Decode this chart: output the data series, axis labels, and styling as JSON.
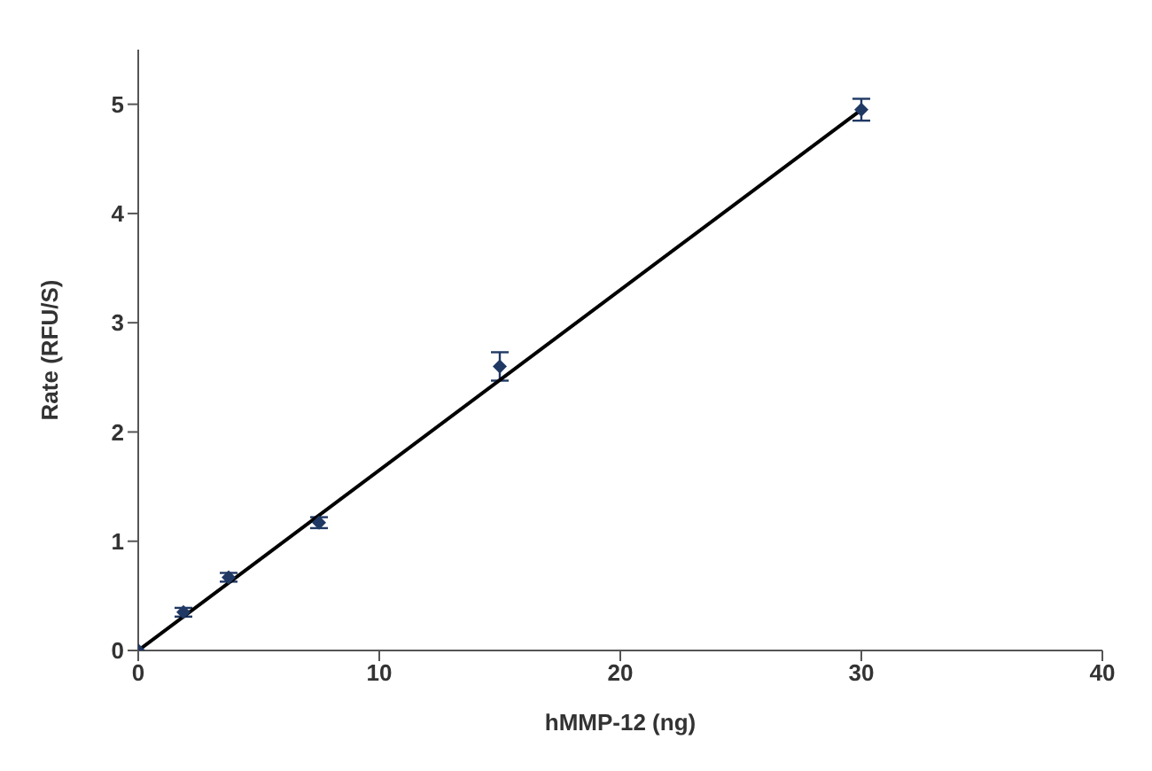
{
  "chart_data": {
    "type": "scatter",
    "xlabel": "hMMP-12 (ng)",
    "ylabel": "Rate (RFU/S)",
    "x": [
      0,
      1.875,
      3.75,
      7.5,
      15,
      30
    ],
    "series": [
      {
        "color": "#1f3864",
        "values": [
          0,
          0.35,
          0.67,
          1.17,
          2.6,
          4.95
        ],
        "errors": [
          null,
          0.04,
          0.04,
          0.05,
          0.13,
          0.1
        ],
        "marker": "diamond"
      },
      {
        "type": "line",
        "color": "#000000",
        "x": [
          0,
          30
        ],
        "values": [
          0,
          4.95
        ],
        "line_style": "solid",
        "marker": "none"
      }
    ],
    "xlim": [
      0,
      40
    ],
    "xticks": [
      0,
      10,
      20,
      30,
      40
    ],
    "ylim": [
      0,
      5.5
    ],
    "yticks": [
      0,
      1,
      2,
      3,
      4,
      5
    ]
  }
}
